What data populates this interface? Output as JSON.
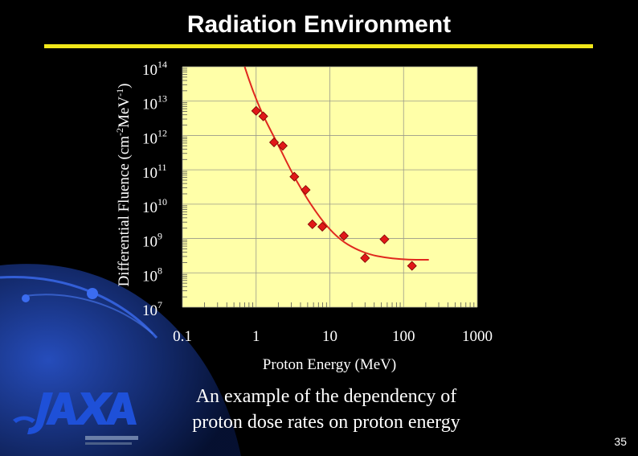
{
  "slide": {
    "title": "Radiation Environment",
    "caption_line1": "An example of the dependency of",
    "caption_line2": "proton dose rates on proton energy",
    "page_number": "35",
    "colors": {
      "background": "#000000",
      "swoosh": "#1a3a9c",
      "rule": "#f2e81a",
      "plot_bg": "#ffffa8",
      "marker": "#e01818",
      "curve": "#e0281e"
    },
    "logo": {
      "icon": "jaxa-logo"
    }
  },
  "chart_data": {
    "type": "scatter",
    "x_scale": "log",
    "y_scale": "log",
    "xlim": [
      0.1,
      1000
    ],
    "ylim": [
      10000000,
      100000000000000
    ],
    "xlabel": "Proton Energy (MeV)",
    "ylabel": "Differential Fluence (cm-2MeV-1)",
    "x_ticks": [
      {
        "value": 0.1,
        "label": "0.1"
      },
      {
        "value": 1,
        "label": "1"
      },
      {
        "value": 10,
        "label": "10"
      },
      {
        "value": 100,
        "label": "100"
      },
      {
        "value": 1000,
        "label": "1000"
      }
    ],
    "y_ticks": [
      {
        "value": 10000000,
        "base": "10",
        "exp": "7"
      },
      {
        "value": 100000000,
        "base": "10",
        "exp": "8"
      },
      {
        "value": 1000000000,
        "base": "10",
        "exp": "9"
      },
      {
        "value": 10000000000,
        "base": "10",
        "exp": "10"
      },
      {
        "value": 100000000000,
        "base": "10",
        "exp": "11"
      },
      {
        "value": 1000000000000,
        "base": "10",
        "exp": "12"
      },
      {
        "value": 10000000000000,
        "base": "10",
        "exp": "13"
      },
      {
        "value": 100000000000000,
        "base": "10",
        "exp": "14"
      }
    ],
    "grid": true,
    "series": [
      {
        "kind": "points",
        "x": [
          1.0,
          1.25,
          1.75,
          2.3,
          3.3,
          4.7,
          5.8,
          7.9,
          15.5,
          30,
          55,
          130
        ],
        "y": [
          5200000000000.0,
          3600000000000.0,
          630000000000.0,
          500000000000.0,
          63000000000.0,
          26000000000.0,
          2600000000.0,
          2200000000.0,
          1200000000.0,
          270000000.0,
          950000000.0,
          160000000.0
        ]
      },
      {
        "kind": "fit-curve",
        "x": [
          0.7,
          0.9,
          1.2,
          1.6,
          2.2,
          3.0,
          4.2,
          6.0,
          9.0,
          14,
          22,
          35,
          55,
          90,
          150,
          220
        ],
        "y": [
          100000000000000.0,
          20000000000000.0,
          4500000000000.0,
          1300000000000.0,
          350000000000.0,
          90000000000.0,
          25000000000.0,
          7500000000.0,
          2300000000.0,
          900000000.0,
          500000000.0,
          340000000.0,
          280000000.0,
          250000000.0,
          240000000.0,
          240000000.0
        ]
      }
    ]
  }
}
